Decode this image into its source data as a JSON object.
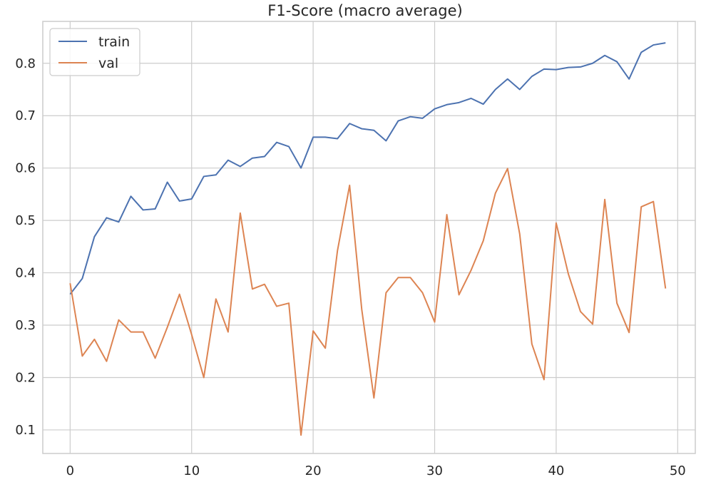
{
  "chart_data": {
    "type": "line",
    "title": "F1-Score (macro average)",
    "xlabel": "",
    "ylabel": "",
    "xlim": [
      -2.25,
      51.45
    ],
    "ylim": [
      0.055,
      0.88
    ],
    "xticks": [
      0,
      10,
      20,
      30,
      40,
      50
    ],
    "yticks": [
      0.1,
      0.2,
      0.3,
      0.4,
      0.5,
      0.6,
      0.7,
      0.8
    ],
    "grid": true,
    "legend_position": "top-left",
    "x": [
      0,
      1,
      2,
      3,
      4,
      5,
      6,
      7,
      8,
      9,
      10,
      11,
      12,
      13,
      14,
      15,
      16,
      17,
      18,
      19,
      20,
      21,
      22,
      23,
      24,
      25,
      26,
      27,
      28,
      29,
      30,
      31,
      32,
      33,
      34,
      35,
      36,
      37,
      38,
      39,
      40,
      41,
      42,
      43,
      44,
      45,
      46,
      47,
      48,
      49
    ],
    "series": [
      {
        "name": "train",
        "color": "#4c72b0",
        "values": [
          0.359,
          0.389,
          0.469,
          0.505,
          0.497,
          0.546,
          0.52,
          0.522,
          0.573,
          0.537,
          0.541,
          0.584,
          0.587,
          0.615,
          0.603,
          0.619,
          0.622,
          0.649,
          0.641,
          0.6,
          0.659,
          0.659,
          0.656,
          0.685,
          0.675,
          0.672,
          0.652,
          0.69,
          0.698,
          0.695,
          0.713,
          0.721,
          0.725,
          0.733,
          0.722,
          0.75,
          0.77,
          0.75,
          0.775,
          0.789,
          0.788,
          0.792,
          0.793,
          0.8,
          0.815,
          0.803,
          0.77,
          0.821,
          0.835,
          0.839
        ]
      },
      {
        "name": "val",
        "color": "#dd8452",
        "values": [
          0.38,
          0.241,
          0.273,
          0.231,
          0.31,
          0.287,
          0.287,
          0.237,
          0.296,
          0.359,
          0.282,
          0.2,
          0.35,
          0.287,
          0.514,
          0.369,
          0.378,
          0.336,
          0.342,
          0.09,
          0.289,
          0.256,
          0.442,
          0.567,
          0.33,
          0.161,
          0.362,
          0.391,
          0.391,
          0.362,
          0.306,
          0.511,
          0.358,
          0.405,
          0.461,
          0.552,
          0.599,
          0.474,
          0.264,
          0.196,
          0.495,
          0.398,
          0.326,
          0.302,
          0.54,
          0.342,
          0.286,
          0.526,
          0.536,
          0.37
        ]
      }
    ]
  }
}
